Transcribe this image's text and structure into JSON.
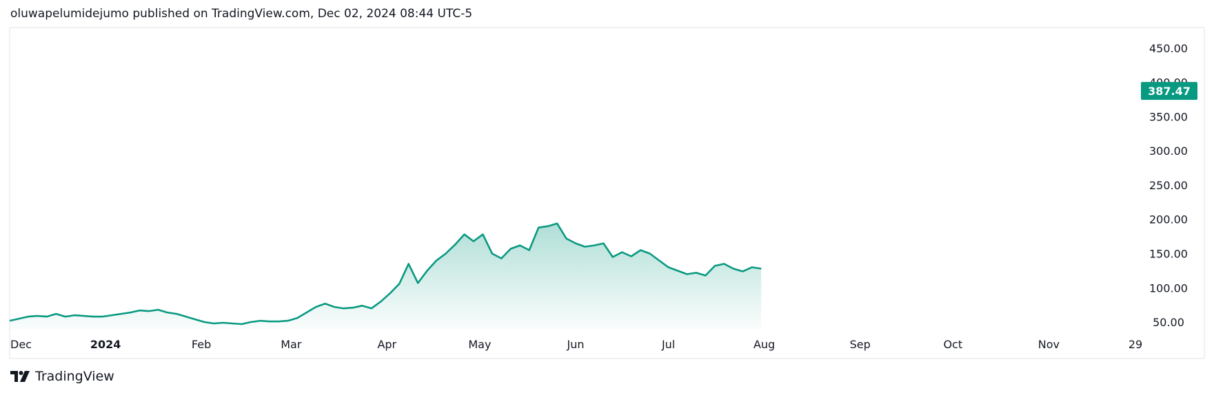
{
  "header": {
    "text": "oluwapelumidejumo published on TradingView.com, Dec 02, 2024 08:44 UTC-5"
  },
  "footer": {
    "brand": "TradingView",
    "logo_icon": "tradingview-logo-icon"
  },
  "colors": {
    "line": "#089981",
    "fill_top": "#089981",
    "border": "#e0e3eb",
    "label_bg": "#089981"
  },
  "chart_data": {
    "type": "area",
    "title": "",
    "xlabel": "",
    "ylabel": "",
    "grid": false,
    "ylim": [
      40,
      480
    ],
    "yticks": [
      {
        "value": 50,
        "label": "50.00"
      },
      {
        "value": 100,
        "label": "100.00"
      },
      {
        "value": 150,
        "label": "150.00"
      },
      {
        "value": 200,
        "label": "200.00"
      },
      {
        "value": 250,
        "label": "250.00"
      },
      {
        "value": 300,
        "label": "300.00"
      },
      {
        "value": 350,
        "label": "350.00"
      },
      {
        "value": 400,
        "label": "400.00"
      },
      {
        "value": 450,
        "label": "450.00"
      }
    ],
    "xticks": [
      {
        "date": "2023-12-01",
        "label": "Dec",
        "bold": false
      },
      {
        "date": "2024-01-01",
        "label": "2024",
        "bold": true
      },
      {
        "date": "2024-02-01",
        "label": "Feb",
        "bold": false
      },
      {
        "date": "2024-03-01",
        "label": "Mar",
        "bold": false
      },
      {
        "date": "2024-04-01",
        "label": "Apr",
        "bold": false
      },
      {
        "date": "2024-05-01",
        "label": "May",
        "bold": false
      },
      {
        "date": "2024-06-01",
        "label": "Jun",
        "bold": false
      },
      {
        "date": "2024-07-01",
        "label": "Jul",
        "bold": false
      },
      {
        "date": "2024-08-01",
        "label": "Aug",
        "bold": false
      },
      {
        "date": "2024-09-01",
        "label": "Sep",
        "bold": false
      },
      {
        "date": "2024-10-01",
        "label": "Oct",
        "bold": false
      },
      {
        "date": "2024-11-01",
        "label": "Nov",
        "bold": false
      },
      {
        "date": "2024-11-29",
        "label": "29",
        "bold": false
      }
    ],
    "last_price": {
      "value": 387.47,
      "label": "387.47"
    },
    "series": [
      {
        "points": [
          [
            "2023-12-01",
            52
          ],
          [
            "2023-12-04",
            55
          ],
          [
            "2023-12-07",
            58
          ],
          [
            "2023-12-10",
            59
          ],
          [
            "2023-12-13",
            58
          ],
          [
            "2023-12-16",
            62
          ],
          [
            "2023-12-19",
            58
          ],
          [
            "2023-12-22",
            60
          ],
          [
            "2023-12-25",
            59
          ],
          [
            "2023-12-28",
            58
          ],
          [
            "2023-12-31",
            58
          ],
          [
            "2024-01-03",
            60
          ],
          [
            "2024-01-06",
            62
          ],
          [
            "2024-01-09",
            64
          ],
          [
            "2024-01-12",
            67
          ],
          [
            "2024-01-15",
            66
          ],
          [
            "2024-01-18",
            68
          ],
          [
            "2024-01-21",
            64
          ],
          [
            "2024-01-24",
            62
          ],
          [
            "2024-01-27",
            58
          ],
          [
            "2024-01-30",
            54
          ],
          [
            "2024-02-02",
            50
          ],
          [
            "2024-02-05",
            48
          ],
          [
            "2024-02-08",
            49
          ],
          [
            "2024-02-11",
            48
          ],
          [
            "2024-02-14",
            47
          ],
          [
            "2024-02-17",
            50
          ],
          [
            "2024-02-20",
            52
          ],
          [
            "2024-02-23",
            51
          ],
          [
            "2024-02-26",
            51
          ],
          [
            "2024-02-29",
            52
          ],
          [
            "2024-03-03",
            56
          ],
          [
            "2024-03-06",
            64
          ],
          [
            "2024-03-09",
            72
          ],
          [
            "2024-03-12",
            77
          ],
          [
            "2024-03-15",
            72
          ],
          [
            "2024-03-18",
            70
          ],
          [
            "2024-03-21",
            71
          ],
          [
            "2024-03-24",
            74
          ],
          [
            "2024-03-27",
            70
          ],
          [
            "2024-03-30",
            80
          ],
          [
            "2024-04-02",
            92
          ],
          [
            "2024-04-05",
            106
          ],
          [
            "2024-04-08",
            135
          ],
          [
            "2024-04-11",
            107
          ],
          [
            "2024-04-14",
            125
          ],
          [
            "2024-04-17",
            140
          ],
          [
            "2024-04-20",
            150
          ],
          [
            "2024-04-23",
            163
          ],
          [
            "2024-04-26",
            178
          ],
          [
            "2024-04-29",
            168
          ],
          [
            "2024-05-02",
            178
          ],
          [
            "2024-05-05",
            150
          ],
          [
            "2024-05-08",
            143
          ],
          [
            "2024-05-11",
            157
          ],
          [
            "2024-05-14",
            162
          ],
          [
            "2024-05-17",
            155
          ],
          [
            "2024-05-20",
            188
          ],
          [
            "2024-05-23",
            190
          ],
          [
            "2024-05-26",
            194
          ],
          [
            "2024-05-29",
            172
          ],
          [
            "2024-06-01",
            165
          ],
          [
            "2024-06-04",
            160
          ],
          [
            "2024-06-07",
            162
          ],
          [
            "2024-06-10",
            165
          ],
          [
            "2024-06-13",
            145
          ],
          [
            "2024-06-16",
            152
          ],
          [
            "2024-06-19",
            146
          ],
          [
            "2024-06-22",
            155
          ],
          [
            "2024-06-25",
            150
          ],
          [
            "2024-06-28",
            140
          ],
          [
            "2024-07-01",
            130
          ],
          [
            "2024-07-04",
            125
          ],
          [
            "2024-07-07",
            120
          ],
          [
            "2024-07-10",
            122
          ],
          [
            "2024-07-13",
            118
          ],
          [
            "2024-07-16",
            132
          ],
          [
            "2024-07-19",
            135
          ],
          [
            "2024-07-22",
            128
          ],
          [
            "2024-07-25",
            124
          ],
          [
            "2024-07-28",
            130
          ],
          [
            "2024-07-31",
            128
          ]
        ]
      }
    ]
  }
}
